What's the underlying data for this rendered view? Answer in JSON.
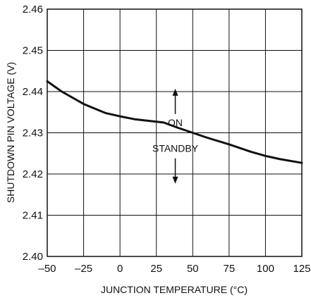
{
  "chart_data": {
    "type": "line",
    "title": "",
    "xlabel": "JUNCTION TEMPERATURE (°C)",
    "ylabel": "SHUTDOWN PIN VOLTAGE (V)",
    "xlim": [
      -50,
      125
    ],
    "ylim": [
      2.4,
      2.46
    ],
    "x_ticks": [
      -50,
      -25,
      0,
      25,
      50,
      75,
      100,
      125
    ],
    "y_ticks": [
      2.4,
      2.41,
      2.42,
      2.43,
      2.44,
      2.45,
      2.46
    ],
    "x_tick_labels": [
      "–50",
      "–25",
      "0",
      "25",
      "50",
      "75",
      "100",
      "125"
    ],
    "y_tick_labels": [
      "2.40",
      "2.41",
      "2.42",
      "2.43",
      "2.44",
      "2.45",
      "2.46"
    ],
    "grid": true,
    "series": [
      {
        "x": [
          -50,
          -40,
          -25,
          -10,
          0,
          10,
          25,
          30,
          40,
          50,
          60,
          75,
          80,
          90,
          100,
          110,
          125
        ],
        "values": [
          2.4425,
          2.44,
          2.437,
          2.4348,
          2.434,
          2.4333,
          2.4327,
          2.4325,
          2.4312,
          2.43,
          2.4288,
          2.4272,
          2.4266,
          2.4254,
          2.4244,
          2.4236,
          2.4227
        ]
      }
    ],
    "annotations": [
      {
        "text": "ON",
        "x": 38,
        "y": 2.4325,
        "arrow": "up"
      },
      {
        "text": "STANDBY",
        "x": 38,
        "y": 2.4262,
        "arrow": "down"
      }
    ]
  }
}
